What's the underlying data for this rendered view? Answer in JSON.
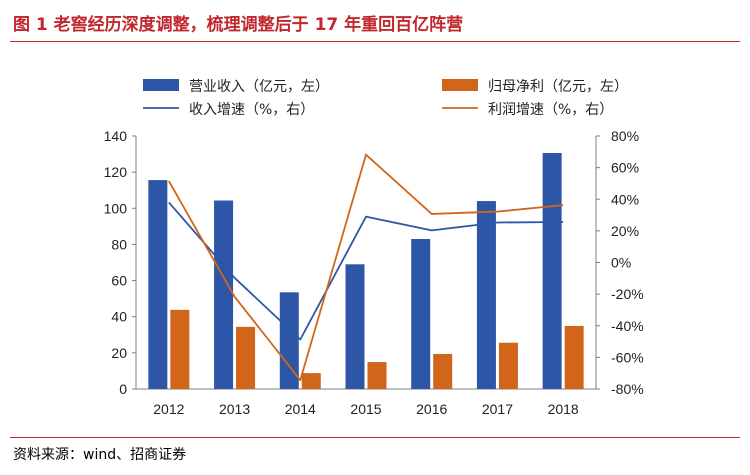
{
  "title": "图 1 老窖经历深度调整，梳理调整后于 17 年重回百亿阵营",
  "source": "资料来源：wind、招商证券",
  "colors": {
    "revenue": "#2E56A6",
    "profit": "#D1661B",
    "title": "#c1272d"
  },
  "chart_data": {
    "type": "bar",
    "categories": [
      "2012",
      "2013",
      "2014",
      "2015",
      "2016",
      "2017",
      "2018"
    ],
    "series": [
      {
        "name": "营业收入（亿元，左）",
        "kind": "bar",
        "axis": "left",
        "color": "#2E56A6",
        "values": [
          115.6,
          104.3,
          53.5,
          69.0,
          83.0,
          104.0,
          130.6
        ]
      },
      {
        "name": "归母净利（亿元，左）",
        "kind": "bar",
        "axis": "left",
        "color": "#D1661B",
        "values": [
          43.8,
          34.4,
          8.8,
          14.9,
          19.4,
          25.6,
          34.9
        ]
      },
      {
        "name": "收入增速（%，右）",
        "kind": "line",
        "axis": "right",
        "color": "#2E56A6",
        "values": [
          38.0,
          -9.7,
          -48.7,
          29.0,
          20.3,
          25.3,
          25.6
        ]
      },
      {
        "name": "利润增速（%，右）",
        "kind": "line",
        "axis": "right",
        "color": "#D1661B",
        "values": [
          51.5,
          -21.6,
          -74.4,
          68.2,
          30.7,
          32.2,
          36.3
        ]
      }
    ],
    "left_axis": {
      "ylim": [
        0,
        140
      ],
      "ticks": [
        "0",
        "20",
        "40",
        "60",
        "80",
        "100",
        "120",
        "140"
      ]
    },
    "right_axis": {
      "ylim": [
        -80,
        80
      ],
      "ticks": [
        "-80%",
        "-60%",
        "-40%",
        "-20%",
        "0%",
        "20%",
        "40%",
        "60%",
        "80%"
      ]
    },
    "legend_position": "top",
    "grid": false
  }
}
